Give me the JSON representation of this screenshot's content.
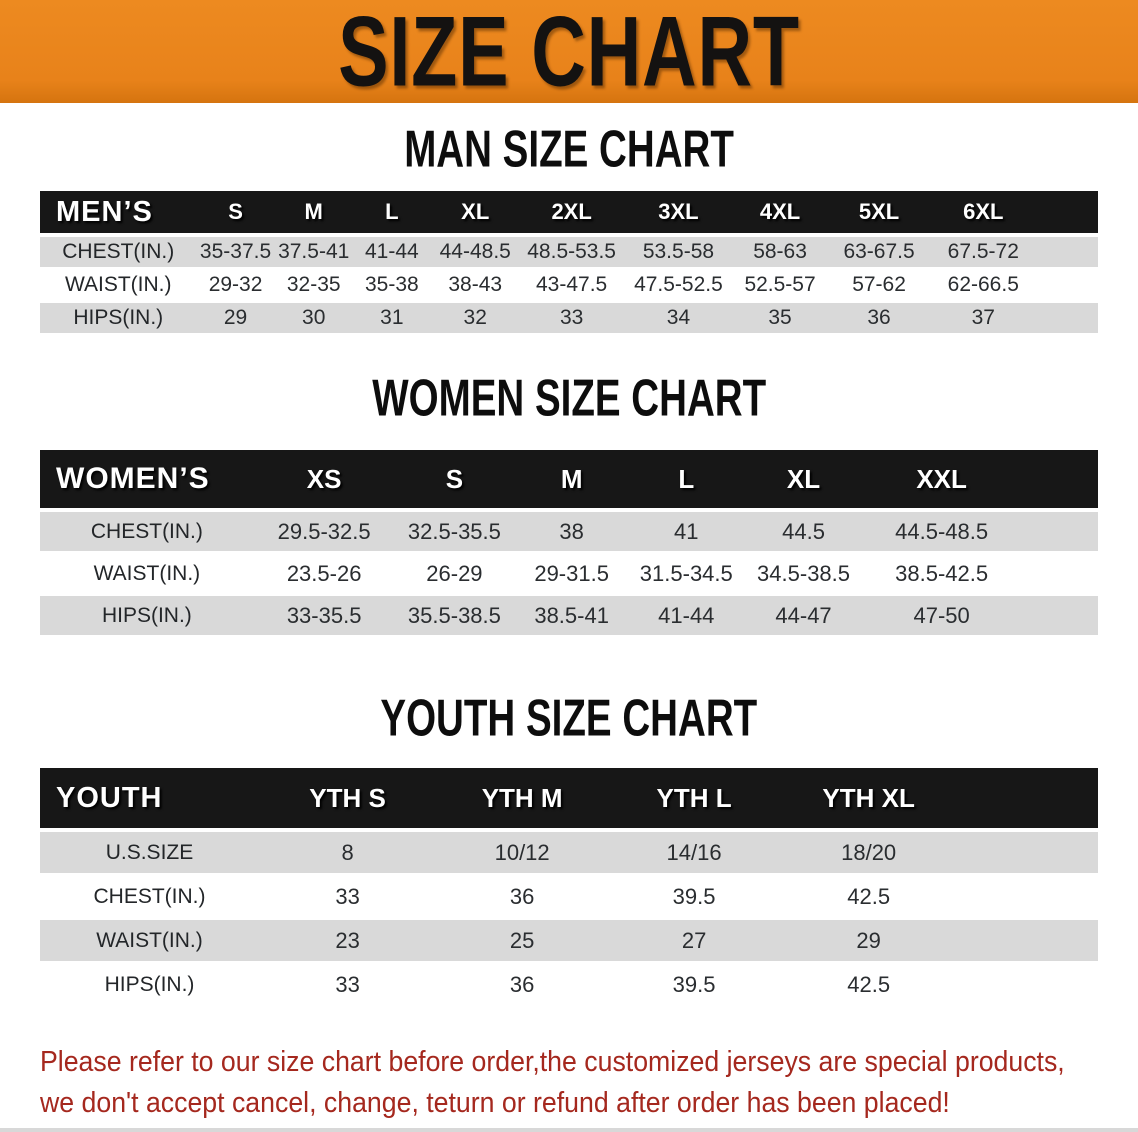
{
  "banner": {
    "title": "SIZE CHART"
  },
  "colors": {
    "banner_orange": "#E8821A",
    "header_bar_black": "#171717",
    "stripe_gray": "#D9D9D9",
    "footer_red": "#A5281E"
  },
  "sections": [
    {
      "title": "MAN SIZE CHART",
      "corner_label": "MEN’S",
      "columns": [
        "S",
        "M",
        "L",
        "XL",
        "2XL",
        "3XL",
        "4XL",
        "5XL",
        "6XL"
      ],
      "rows": [
        {
          "label": "CHEST(IN.)",
          "values": [
            "35-37.5",
            "37.5-41",
            "41-44",
            "44-48.5",
            "48.5-53.5",
            "53.5-58",
            "58-63",
            "63-67.5",
            "67.5-72"
          ]
        },
        {
          "label": "WAIST(IN.)",
          "values": [
            "29-32",
            "32-35",
            "35-38",
            "38-43",
            "43-47.5",
            "47.5-52.5",
            "52.5-57",
            "57-62",
            "62-66.5"
          ]
        },
        {
          "label": "HIPS(IN.)",
          "values": [
            "29",
            "30",
            "31",
            "32",
            "33",
            "34",
            "35",
            "36",
            "37"
          ]
        }
      ]
    },
    {
      "title": "WOMEN SIZE CHART",
      "corner_label": "WOMEN’S",
      "columns": [
        "XS",
        "S",
        "M",
        "L",
        "XL",
        "XXL"
      ],
      "rows": [
        {
          "label": "CHEST(IN.)",
          "values": [
            "29.5-32.5",
            "32.5-35.5",
            "38",
            "41",
            "44.5",
            "44.5-48.5"
          ]
        },
        {
          "label": "WAIST(IN.)",
          "values": [
            "23.5-26",
            "26-29",
            "29-31.5",
            "31.5-34.5",
            "34.5-38.5",
            "38.5-42.5"
          ]
        },
        {
          "label": "HIPS(IN.)",
          "values": [
            "33-35.5",
            "35.5-38.5",
            "38.5-41",
            "41-44",
            "44-47",
            "47-50"
          ]
        }
      ]
    },
    {
      "title": "YOUTH SIZE CHART",
      "corner_label": "YOUTH",
      "columns": [
        "YTH S",
        "YTH M",
        "YTH L",
        "YTH XL"
      ],
      "rows": [
        {
          "label": "U.S.SIZE",
          "values": [
            "8",
            "10/12",
            "14/16",
            "18/20"
          ]
        },
        {
          "label": "CHEST(IN.)",
          "values": [
            "33",
            "36",
            "39.5",
            "42.5"
          ]
        },
        {
          "label": "WAIST(IN.)",
          "values": [
            "23",
            "25",
            "27",
            "29"
          ]
        },
        {
          "label": "HIPS(IN.)",
          "values": [
            "33",
            "36",
            "39.5",
            "42.5"
          ]
        }
      ]
    }
  ],
  "footer": {
    "lines": [
      "Please refer to our size chart before order,the customized jerseys are special products,",
      "we don't accept cancel, change, teturn or refund after order has been placed!"
    ]
  }
}
